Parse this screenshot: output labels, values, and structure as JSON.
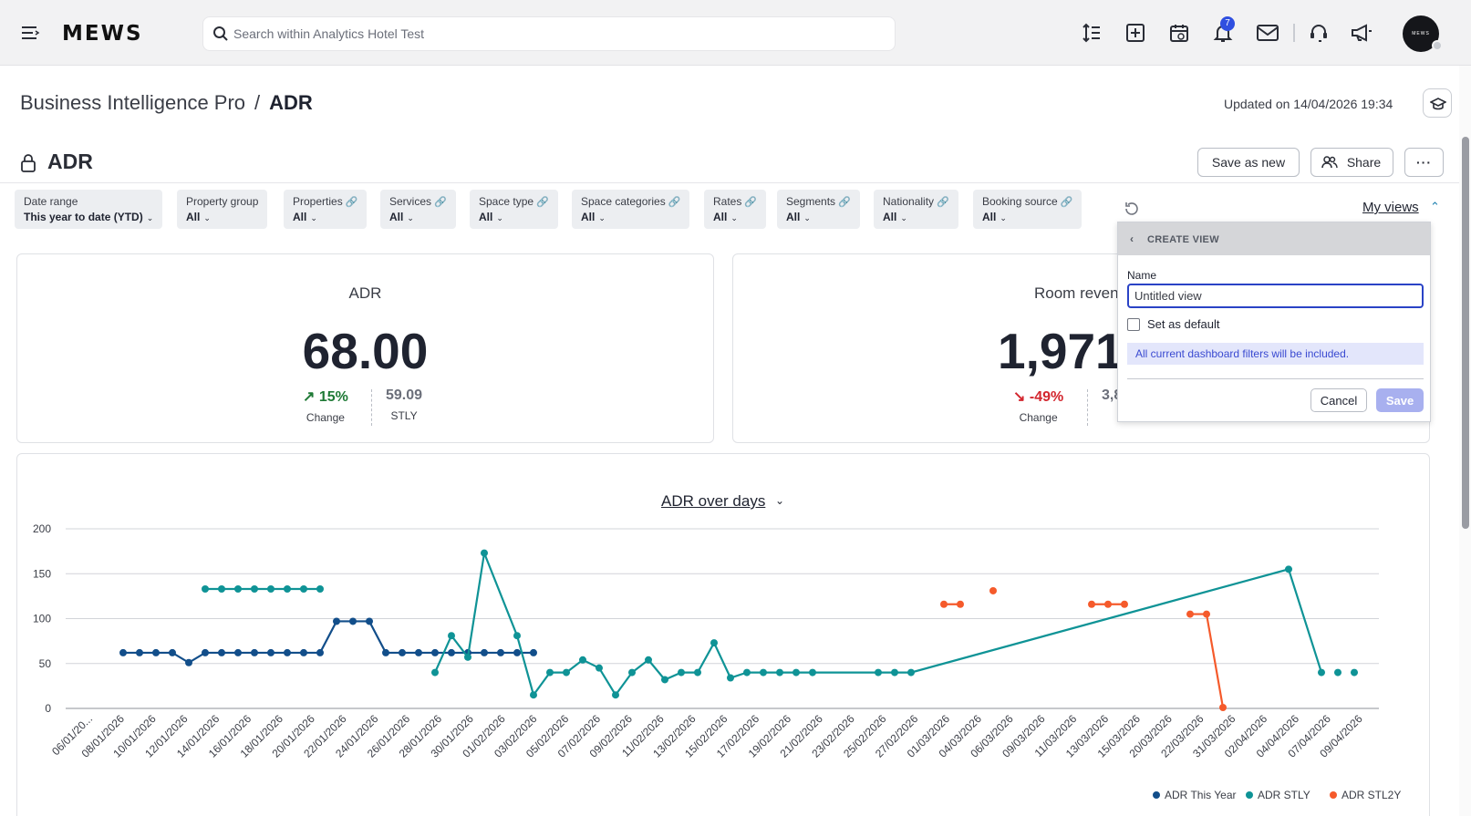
{
  "topbar": {
    "logo": "MEWS",
    "search_placeholder": "Search within Analytics Hotel Test",
    "notification_count": "7",
    "avatar_text": "MEWS",
    "icons": [
      "menu-icon",
      "sort-icon",
      "add-icon",
      "calendar-view-icon",
      "bell-icon",
      "mail-icon",
      "support-icon",
      "megaphone-icon"
    ]
  },
  "breadcrumb": {
    "parent": "Business Intelligence Pro",
    "separator": "/",
    "current": "ADR"
  },
  "updated": "Updated on 14/04/2026 19:34",
  "page": {
    "title": "ADR",
    "save_as_new": "Save as new",
    "share": "Share",
    "more": "···"
  },
  "filters": [
    {
      "label": "Date range",
      "value": "This year to date (YTD)",
      "linked": false
    },
    {
      "label": "Property group",
      "value": "All",
      "linked": false
    },
    {
      "label": "Properties",
      "value": "All",
      "linked": true
    },
    {
      "label": "Services",
      "value": "All",
      "linked": true
    },
    {
      "label": "Space type",
      "value": "All",
      "linked": true
    },
    {
      "label": "Space categories",
      "value": "All",
      "linked": true
    },
    {
      "label": "Rates",
      "value": "All",
      "linked": true
    },
    {
      "label": "Segments",
      "value": "All",
      "linked": true
    },
    {
      "label": "Nationality",
      "value": "All",
      "linked": true
    },
    {
      "label": "Booking source",
      "value": "All",
      "linked": true
    }
  ],
  "my_views": "My views",
  "kpi": [
    {
      "label": "ADR",
      "value": "68.00",
      "change": "15%",
      "change_caption": "Change",
      "stly": "59.09",
      "stly_caption": "STLY",
      "trend": "up"
    },
    {
      "label": "Room revenue",
      "value": "1,971.",
      "change": "-49%",
      "change_caption": "Change",
      "stly": "3,8",
      "trend": "down"
    }
  ],
  "popover": {
    "header": "CREATE VIEW",
    "name_label": "Name",
    "name_placeholder": "Untitled view",
    "default_label": "Set as default",
    "info": "All current dashboard filters will be included.",
    "cancel": "Cancel",
    "save": "Save"
  },
  "chart_title": "ADR over days",
  "colors": {
    "this_year": "#124e8a",
    "stly": "#0f9396",
    "stl2y": "#f55a2b",
    "accent": "#2a43c6"
  },
  "chart_data": {
    "type": "line",
    "title": "ADR over days",
    "ylim": [
      0,
      200
    ],
    "yticks": [
      0,
      50,
      100,
      150,
      200
    ],
    "grid": true,
    "x_tick_labels": [
      "06/01/20...",
      "08/01/2026",
      "10/01/2026",
      "12/01/2026",
      "14/01/2026",
      "16/01/2026",
      "18/01/2026",
      "20/01/2026",
      "22/01/2026",
      "24/01/2026",
      "26/01/2026",
      "28/01/2026",
      "30/01/2026",
      "01/02/2026",
      "03/02/2026",
      "05/02/2026",
      "07/02/2026",
      "09/02/2026",
      "11/02/2026",
      "13/02/2026",
      "15/02/2026",
      "17/02/2026",
      "19/02/2026",
      "21/02/2026",
      "23/02/2026",
      "25/02/2026",
      "27/02/2026",
      "01/03/2026",
      "04/03/2026",
      "06/03/2026",
      "09/03/2026",
      "11/03/2026",
      "13/03/2026",
      "15/03/2026",
      "20/03/2026",
      "22/03/2026",
      "31/03/2026",
      "02/04/2026",
      "04/04/2026",
      "07/04/2026",
      "09/04/2026"
    ],
    "legend_position": "bottom-right",
    "series": [
      {
        "name": "ADR This Year",
        "color": "#124e8a",
        "points": [
          [
            3,
            62
          ],
          [
            4,
            62
          ],
          [
            5,
            62
          ],
          [
            6,
            62
          ],
          [
            7,
            51
          ],
          [
            8,
            62
          ],
          [
            9,
            62
          ],
          [
            10,
            62
          ],
          [
            11,
            62
          ],
          [
            12,
            62
          ],
          [
            13,
            62
          ],
          [
            14,
            62
          ],
          [
            15,
            62
          ],
          [
            16,
            97
          ],
          [
            17,
            97
          ],
          [
            18,
            97
          ],
          [
            19,
            62
          ],
          [
            20,
            62
          ],
          [
            21,
            62
          ],
          [
            22,
            62
          ],
          [
            23,
            62
          ],
          [
            24,
            62
          ],
          [
            25,
            62
          ],
          [
            26,
            62
          ],
          [
            27,
            62
          ],
          [
            28,
            62
          ]
        ],
        "segments": [
          [
            0,
            25
          ]
        ]
      },
      {
        "name": "ADR STLY",
        "color": "#0f9396",
        "points": [
          [
            8,
            133
          ],
          [
            9,
            133
          ],
          [
            10,
            133
          ],
          [
            11,
            133
          ],
          [
            12,
            133
          ],
          [
            13,
            133
          ],
          [
            14,
            133
          ],
          [
            15,
            133
          ],
          [
            22,
            40
          ],
          [
            23,
            81
          ],
          [
            24,
            57
          ],
          [
            25,
            173
          ],
          [
            27,
            81
          ],
          [
            28,
            15
          ],
          [
            29,
            40
          ],
          [
            30,
            40
          ],
          [
            31,
            54
          ],
          [
            32,
            45
          ],
          [
            33,
            15
          ],
          [
            34,
            40
          ],
          [
            35,
            54
          ],
          [
            36,
            32
          ],
          [
            37,
            40
          ],
          [
            38,
            40
          ],
          [
            39,
            73
          ],
          [
            40,
            34
          ],
          [
            41,
            40
          ],
          [
            42,
            40
          ],
          [
            43,
            40
          ],
          [
            44,
            40
          ],
          [
            45,
            40
          ],
          [
            49,
            40
          ],
          [
            50,
            40
          ],
          [
            51,
            40
          ],
          [
            74,
            155
          ],
          [
            76,
            40
          ],
          [
            77,
            40
          ],
          [
            78,
            40
          ]
        ],
        "segments": [
          [
            0,
            7
          ],
          [
            8,
            35
          ],
          [
            36,
            36
          ],
          [
            37,
            37
          ]
        ]
      },
      {
        "name": "ADR STL2Y",
        "color": "#f55a2b",
        "points": [
          [
            53,
            116
          ],
          [
            54,
            116
          ],
          [
            56,
            131
          ],
          [
            62,
            116
          ],
          [
            63,
            116
          ],
          [
            64,
            116
          ],
          [
            68,
            105
          ],
          [
            69,
            105
          ],
          [
            70,
            1
          ]
        ],
        "segments": [
          [
            0,
            1
          ],
          [
            2,
            2
          ],
          [
            3,
            5
          ],
          [
            6,
            8
          ]
        ]
      }
    ]
  }
}
